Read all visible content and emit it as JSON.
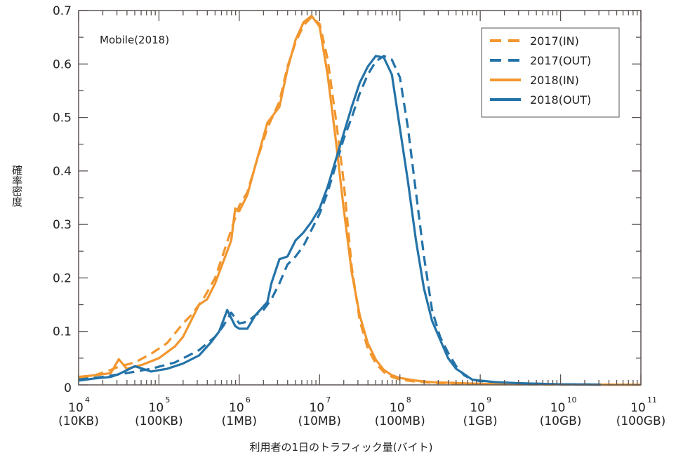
{
  "chart_data": {
    "type": "line",
    "title": "",
    "annotation": "Mobile(2018)",
    "xlabel": "利用者の1日のトラフィック量(バイト)",
    "ylabel": "確率密度",
    "xscale": "log10",
    "xlim_log10": [
      4,
      11
    ],
    "ylim": [
      0,
      0.7
    ],
    "grid": false,
    "legend_position": "top-right",
    "colors": {
      "in": "#f2962e",
      "out": "#2473a8",
      "axis": "#5a5350"
    },
    "yticks": [
      {
        "value": 0,
        "label": "0"
      },
      {
        "value": 0.1,
        "label": "0.1"
      },
      {
        "value": 0.2,
        "label": "0.2"
      },
      {
        "value": 0.3,
        "label": "0.3"
      },
      {
        "value": 0.4,
        "label": "0.4"
      },
      {
        "value": 0.5,
        "label": "0.5"
      },
      {
        "value": 0.6,
        "label": "0.6"
      },
      {
        "value": 0.7,
        "label": "0.7"
      }
    ],
    "xticks": [
      {
        "exp": 4,
        "base": "10",
        "power": "4",
        "unit": "(10KB)"
      },
      {
        "exp": 5,
        "base": "10",
        "power": "5",
        "unit": "(100KB)"
      },
      {
        "exp": 6,
        "base": "10",
        "power": "6",
        "unit": "(1MB)"
      },
      {
        "exp": 7,
        "base": "10",
        "power": "7",
        "unit": "(10MB)"
      },
      {
        "exp": 8,
        "base": "10",
        "power": "8",
        "unit": "(100MB)"
      },
      {
        "exp": 9,
        "base": "10",
        "power": "9",
        "unit": "(1GB)"
      },
      {
        "exp": 10,
        "base": "10",
        "power": "10",
        "unit": "(10GB)"
      },
      {
        "exp": 11,
        "base": "10",
        "power": "11",
        "unit": "(100GB)"
      }
    ],
    "series": [
      {
        "name": "2017(IN)",
        "group": "in",
        "dashed": true,
        "x_log10": [
          4.0,
          4.2,
          4.4,
          4.5,
          4.7,
          4.9,
          5.1,
          5.3,
          5.4,
          5.55,
          5.7,
          5.8,
          5.9,
          6.0,
          6.1,
          6.2,
          6.35,
          6.5,
          6.6,
          6.7,
          6.8,
          6.9,
          7.0,
          7.1,
          7.2,
          7.3,
          7.4,
          7.5,
          7.6,
          7.7,
          7.8,
          7.9,
          8.0,
          8.2,
          8.4,
          8.6,
          8.8,
          9.0,
          9.4,
          10.0,
          10.8
        ],
        "y": [
          0.013,
          0.018,
          0.028,
          0.034,
          0.042,
          0.058,
          0.078,
          0.115,
          0.13,
          0.16,
          0.2,
          0.245,
          0.29,
          0.335,
          0.36,
          0.41,
          0.48,
          0.53,
          0.595,
          0.64,
          0.672,
          0.688,
          0.675,
          0.61,
          0.5,
          0.38,
          0.22,
          0.12,
          0.068,
          0.04,
          0.024,
          0.015,
          0.01,
          0.006,
          0.004,
          0.003,
          0.002,
          0.0015,
          0.001,
          0.0005,
          0.0003
        ]
      },
      {
        "name": "2017(OUT)",
        "group": "out",
        "dashed": true,
        "x_log10": [
          4.0,
          4.3,
          4.6,
          4.9,
          5.2,
          5.5,
          5.7,
          5.8,
          5.9,
          6.0,
          6.1,
          6.2,
          6.3,
          6.4,
          6.5,
          6.6,
          6.7,
          6.8,
          6.9,
          7.0,
          7.1,
          7.2,
          7.3,
          7.4,
          7.5,
          7.6,
          7.7,
          7.8,
          7.9,
          8.0,
          8.1,
          8.2,
          8.3,
          8.4,
          8.5,
          8.6,
          8.7,
          8.8,
          8.9,
          9.0,
          9.2,
          9.5,
          10.0,
          10.5
        ],
        "y": [
          0.01,
          0.015,
          0.022,
          0.03,
          0.042,
          0.065,
          0.09,
          0.11,
          0.135,
          0.115,
          0.118,
          0.13,
          0.14,
          0.16,
          0.19,
          0.225,
          0.24,
          0.26,
          0.29,
          0.32,
          0.36,
          0.41,
          0.46,
          0.5,
          0.545,
          0.58,
          0.605,
          0.615,
          0.608,
          0.575,
          0.48,
          0.36,
          0.24,
          0.14,
          0.09,
          0.06,
          0.035,
          0.018,
          0.01,
          0.007,
          0.005,
          0.003,
          0.001,
          0.0005
        ]
      },
      {
        "name": "2018(IN)",
        "group": "in",
        "dashed": false,
        "x_log10": [
          4.0,
          4.2,
          4.4,
          4.5,
          4.6,
          4.8,
          5.0,
          5.2,
          5.3,
          5.4,
          5.5,
          5.6,
          5.7,
          5.8,
          5.9,
          5.95,
          6.0,
          6.1,
          6.2,
          6.35,
          6.5,
          6.6,
          6.7,
          6.8,
          6.9,
          7.0,
          7.1,
          7.2,
          7.3,
          7.4,
          7.5,
          7.6,
          7.7,
          7.8,
          7.9,
          8.0,
          8.2,
          8.4,
          8.6,
          8.8,
          9.0,
          9.4,
          10.0,
          10.5,
          11.0
        ],
        "y": [
          0.015,
          0.018,
          0.022,
          0.048,
          0.03,
          0.038,
          0.05,
          0.072,
          0.09,
          0.12,
          0.15,
          0.16,
          0.19,
          0.23,
          0.27,
          0.33,
          0.325,
          0.355,
          0.41,
          0.49,
          0.52,
          0.59,
          0.645,
          0.678,
          0.69,
          0.67,
          0.58,
          0.46,
          0.33,
          0.21,
          0.13,
          0.078,
          0.047,
          0.028,
          0.018,
          0.013,
          0.008,
          0.005,
          0.004,
          0.003,
          0.002,
          0.0015,
          0.001,
          0.0005,
          0.0003
        ]
      },
      {
        "name": "2018(OUT)",
        "group": "out",
        "dashed": false,
        "x_log10": [
          4.0,
          4.2,
          4.4,
          4.5,
          4.7,
          4.9,
          5.1,
          5.3,
          5.5,
          5.65,
          5.75,
          5.85,
          5.95,
          6.0,
          6.1,
          6.2,
          6.35,
          6.4,
          6.5,
          6.6,
          6.7,
          6.8,
          6.9,
          7.0,
          7.1,
          7.2,
          7.3,
          7.4,
          7.5,
          7.6,
          7.7,
          7.8,
          7.9,
          8.0,
          8.1,
          8.2,
          8.3,
          8.4,
          8.5,
          8.6,
          8.7,
          8.8,
          8.9,
          9.0,
          9.2,
          9.5,
          10.0,
          10.5
        ],
        "y": [
          0.008,
          0.012,
          0.015,
          0.02,
          0.035,
          0.025,
          0.03,
          0.04,
          0.055,
          0.08,
          0.1,
          0.14,
          0.11,
          0.105,
          0.105,
          0.13,
          0.155,
          0.19,
          0.235,
          0.24,
          0.27,
          0.285,
          0.305,
          0.33,
          0.37,
          0.42,
          0.47,
          0.52,
          0.565,
          0.595,
          0.615,
          0.612,
          0.58,
          0.48,
          0.38,
          0.27,
          0.18,
          0.12,
          0.085,
          0.05,
          0.03,
          0.02,
          0.01,
          0.008,
          0.005,
          0.003,
          0.001,
          0.0005
        ]
      }
    ]
  }
}
